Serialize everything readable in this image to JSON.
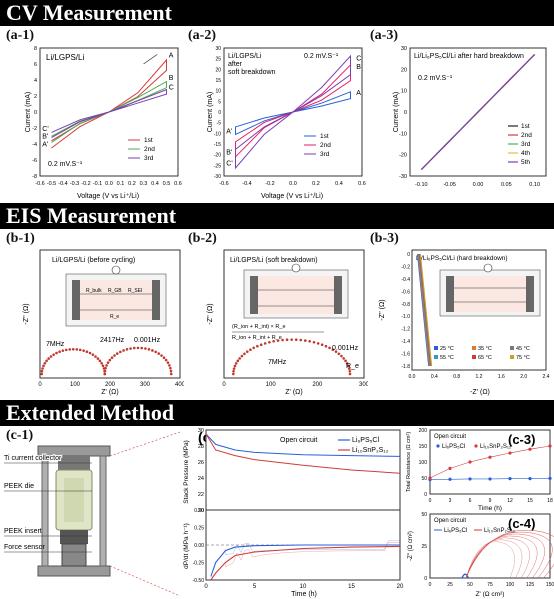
{
  "sections": {
    "cv": "CV Measurement",
    "eis": "EIS Measurement",
    "ext": "Extended Method"
  },
  "labels": {
    "a1": "(a-1)",
    "a2": "(a-2)",
    "a3": "(a-3)",
    "b1": "(b-1)",
    "b2": "(b-2)",
    "b3": "(b-3)",
    "c1": "(c-1)",
    "c2": "(c-2)",
    "c3": "(c-3)",
    "c4": "(c-4)"
  },
  "a1": {
    "title": "Li/LGPS/Li",
    "scan": "0.2 mV.S⁻¹",
    "xlabel": "Voltage (V vs Li⁺/Li)",
    "ylabel": "Current (mA)",
    "legend": [
      "1st",
      "2nd",
      "3rd"
    ],
    "points": [
      "A",
      "B",
      "C",
      "A'",
      "B'",
      "C'"
    ],
    "xticks": [
      "-0.6",
      "-0.5",
      "-0.4",
      "-0.3",
      "-0.2",
      "-0.1",
      "0.0",
      "0.1",
      "0.2",
      "0.3",
      "0.4",
      "0.5",
      "0.6"
    ],
    "yticks": [
      "-8",
      "-6",
      "-4",
      "-2",
      "0",
      "2",
      "4",
      "6",
      "8"
    ]
  },
  "a2": {
    "title": "Li/LGPS/Li\nafter\nsoft breakdown",
    "t1": "Li/LGPS/Li",
    "t2": "after",
    "t3": "soft breakdown",
    "scan": "0.2 mV.S⁻¹",
    "xlabel": "Voltage (V vs Li⁺/Li)",
    "ylabel": "Current (mA)",
    "legend": [
      "1st",
      "2nd",
      "3rd"
    ],
    "xticks": [
      "-0.6",
      "-0.4",
      "-0.2",
      "0.0",
      "0.2",
      "0.4",
      "0.6"
    ],
    "yticks": [
      "-30",
      "-25",
      "-20",
      "-15",
      "-10",
      "-5",
      "0",
      "5",
      "10",
      "15",
      "20",
      "25",
      "30"
    ]
  },
  "a3": {
    "title": "Li/Li₆PS₅Cl/Li  after hard breakdown",
    "scan": "0.2 mV.S⁻¹",
    "ylabel": "Current (mA)",
    "legend": [
      "1st",
      "2nd",
      "3rd",
      "4th",
      "5th"
    ],
    "xticks": [
      "-0.10",
      "-0.05",
      "0.00",
      "0.05",
      "0.10"
    ],
    "yticks": [
      "-30",
      "-20",
      "-10",
      "0",
      "10",
      "20",
      "30"
    ]
  },
  "b1": {
    "title": "Li/LGPS/Li (before cycling)",
    "xlabel": "Z' (Ω)",
    "ylabel": "-Z'' (Ω)",
    "xticks": [
      "0",
      "100",
      "200",
      "300",
      "400"
    ],
    "freq": [
      "7MHz",
      "2417Hz",
      "0.001Hz"
    ],
    "circuit": [
      "R_bulk",
      "R_GB",
      "R_SEI",
      "R_e"
    ]
  },
  "b2": {
    "title": "Li/LGPS/Li (soft breakdown)",
    "xlabel": "Z' (Ω)",
    "ylabel": "-Z'' (Ω)",
    "xticks": [
      "0",
      "100",
      "200",
      "300"
    ],
    "freq": [
      "7MHz",
      "0.001Hz"
    ],
    "formula_num": "(R_ion + R_int) × R_e",
    "formula_den": "R_ion + R_int + R_e",
    "re": "R_e"
  },
  "b3": {
    "title": "Li/Li₆PS₅Cl/Li (hard breakdown)",
    "xlabel": "-Z' (Ω)",
    "ylabel": "-Z'' (Ω)",
    "xticks": [
      "0.0",
      "0.2",
      "0.4",
      "0.6",
      "0.8",
      "1.0",
      "1.2",
      "1.4",
      "1.6",
      "1.8",
      "2.0",
      "2.2",
      "2.4"
    ],
    "yticks": [
      "0",
      "-0.2",
      "-0.4",
      "-0.6",
      "-0.8",
      "-1.0",
      "-1.2",
      "-1.4",
      "-1.6",
      "-1.8"
    ],
    "legend": [
      "25 °C",
      "35 °C",
      "45 °C",
      "55 °C",
      "65 °C",
      "75 °C"
    ],
    "legend_colors": [
      "#2b5fd9",
      "#e07b2a",
      "#7a7a7a",
      "#2e9ad0",
      "#d43a3a",
      "#c8a02a"
    ]
  },
  "c1": {
    "labels": [
      "Ti current collector",
      "PEEK die",
      "PEEK insert",
      "Force sensor"
    ]
  },
  "c2": {
    "legend_title": "Open circuit",
    "series": [
      "Li₆PS₅Cl",
      "Li₁₀SnP₂S₁₂"
    ],
    "ylabel_top": "Stack Pressure (MPa)",
    "ylabel_bot": "dP/dt (MPa h⁻¹)",
    "xlabel": "Time (h)",
    "yticks_top": [
      "20",
      "22",
      "24",
      "26",
      "28",
      "30"
    ],
    "yticks_bot": [
      "0.50",
      "0.25",
      "0.00",
      "-0.25",
      "-0.50"
    ],
    "xticks": [
      "0",
      "5",
      "10",
      "15",
      "20"
    ],
    "colors": [
      "#2b5fd9",
      "#d43a3a"
    ]
  },
  "c3": {
    "legend_title": "Open circuit",
    "series": [
      "Li₆PS₅Cl",
      "Li₁₀SnP₂S₁₂"
    ],
    "ylabel": "Total Resistance (Ω cm²)",
    "xlabel": "Time (h)",
    "yticks": [
      "0",
      "50",
      "100",
      "150",
      "200"
    ],
    "xticks": [
      "0",
      "3",
      "6",
      "9",
      "12",
      "15",
      "18"
    ]
  },
  "c4": {
    "legend_title": "Open circuit",
    "series": [
      "Li₆PS₅Cl",
      "Li₁₀SnP₂S₁₂"
    ],
    "ylabel": "-Z'' (Ω cm²)",
    "xlabel": "Z' (Ω cm²)",
    "yticks": [
      "0",
      "25",
      "50"
    ],
    "xticks": [
      "0",
      "25",
      "50",
      "75",
      "100",
      "125",
      "150"
    ]
  },
  "chart_data": [
    {
      "type": "line",
      "title": "Li/LGPS/Li",
      "xlabel": "Voltage (V vs Li⁺/Li)",
      "ylabel": "Current (mA)",
      "xlim": [
        -0.6,
        0.6
      ],
      "ylim": [
        -8,
        8
      ],
      "series": [
        {
          "name": "1st",
          "x": [
            -0.5,
            -0.25,
            0,
            0.25,
            0.5
          ],
          "y": [
            -4.5,
            -1.8,
            0,
            2.4,
            6.5
          ]
        },
        {
          "name": "2nd",
          "x": [
            -0.5,
            -0.25,
            0,
            0.25,
            0.5
          ],
          "y": [
            -3.8,
            -1.4,
            0,
            1.8,
            3.8
          ]
        },
        {
          "name": "3rd",
          "x": [
            -0.5,
            -0.25,
            0,
            0.25,
            0.5
          ],
          "y": [
            -3.2,
            -1.2,
            0,
            1.4,
            2.8
          ]
        }
      ]
    },
    {
      "type": "line",
      "title": "Li/LGPS/Li after soft breakdown",
      "xlabel": "Voltage (V vs Li⁺/Li)",
      "ylabel": "Current (mA)",
      "xlim": [
        -0.6,
        0.6
      ],
      "ylim": [
        -30,
        30
      ],
      "series": [
        {
          "name": "1st",
          "x": [
            -0.5,
            -0.25,
            0,
            0.25,
            0.5
          ],
          "y": [
            -10,
            -4,
            0,
            4,
            9
          ]
        },
        {
          "name": "2nd",
          "x": [
            -0.5,
            -0.25,
            0,
            0.25,
            0.5
          ],
          "y": [
            -20,
            -7,
            0,
            8,
            21
          ]
        },
        {
          "name": "3rd",
          "x": [
            -0.5,
            -0.25,
            0,
            0.25,
            0.5
          ],
          "y": [
            -25,
            -10,
            0,
            11,
            25
          ]
        }
      ]
    },
    {
      "type": "line",
      "title": "Li/Li₆PS₅Cl/Li after hard breakdown",
      "ylabel": "Current (mA)",
      "xlim": [
        -0.12,
        0.12
      ],
      "ylim": [
        -30,
        30
      ],
      "series": [
        {
          "name": "1st",
          "x": [
            -0.1,
            0.1
          ],
          "y": [
            -27,
            27
          ]
        },
        {
          "name": "2nd",
          "x": [
            -0.1,
            0.1
          ],
          "y": [
            -27,
            27
          ]
        },
        {
          "name": "3rd",
          "x": [
            -0.1,
            0.1
          ],
          "y": [
            -27,
            27
          ]
        },
        {
          "name": "4th",
          "x": [
            -0.1,
            0.1
          ],
          "y": [
            -27,
            27
          ]
        },
        {
          "name": "5th",
          "x": [
            -0.1,
            0.1
          ],
          "y": [
            -27,
            27
          ]
        }
      ]
    },
    {
      "type": "scatter",
      "title": "Li/LGPS/Li (before cycling)",
      "xlabel": "Z' (Ω)",
      "ylabel": "-Z'' (Ω)",
      "xlim": [
        0,
        400
      ],
      "series": [
        {
          "x": [
            5,
            50,
            100,
            150,
            185,
            230,
            280,
            330,
            360
          ],
          "y": [
            0,
            45,
            55,
            40,
            5,
            40,
            55,
            40,
            10
          ]
        }
      ]
    },
    {
      "type": "scatter",
      "title": "Li/LGPS/Li (soft breakdown)",
      "xlabel": "Z' (Ω)",
      "ylabel": "-Z'' (Ω)",
      "xlim": [
        0,
        300
      ],
      "series": [
        {
          "x": [
            20,
            60,
            110,
            160,
            210,
            250,
            270
          ],
          "y": [
            0,
            40,
            60,
            65,
            50,
            25,
            5
          ]
        }
      ]
    },
    {
      "type": "line",
      "title": "Li/Li₆PS₅Cl/Li (hard breakdown)",
      "xlabel": "-Z' (Ω)",
      "ylabel": "-Z'' (Ω)",
      "xlim": [
        0,
        2.4
      ],
      "ylim": [
        -1.8,
        0
      ],
      "series": [
        {
          "name": "25 °C",
          "x": [
            0.1,
            0.3
          ],
          "y": [
            0,
            -1.8
          ]
        },
        {
          "name": "35 °C",
          "x": [
            0.1,
            0.3
          ],
          "y": [
            0,
            -1.8
          ]
        },
        {
          "name": "45 °C",
          "x": [
            0.1,
            0.3
          ],
          "y": [
            0,
            -1.8
          ]
        },
        {
          "name": "55 °C",
          "x": [
            0.1,
            0.3
          ],
          "y": [
            0,
            -1.8
          ]
        },
        {
          "name": "65 °C",
          "x": [
            0.1,
            0.3
          ],
          "y": [
            0,
            -1.8
          ]
        },
        {
          "name": "75 °C",
          "x": [
            0.1,
            0.3
          ],
          "y": [
            0,
            -1.8
          ]
        }
      ]
    },
    {
      "type": "line",
      "title": "",
      "xlabel": "Time (h)",
      "ylabel": "Stack Pressure (MPa)",
      "xlim": [
        0,
        20
      ],
      "ylim": [
        20,
        30
      ],
      "series": [
        {
          "name": "Li₆PS₅Cl",
          "x": [
            0,
            1,
            3,
            5,
            10,
            15,
            20
          ],
          "y": [
            29.5,
            28.2,
            27.5,
            27.2,
            26.9,
            26.8,
            26.7
          ]
        },
        {
          "name": "Li₁₀SnP₂S₁₂",
          "x": [
            0,
            1,
            3,
            5,
            10,
            15,
            20
          ],
          "y": [
            29.5,
            27.5,
            26.8,
            26.3,
            25.6,
            25.0,
            24.6
          ]
        }
      ]
    },
    {
      "type": "line",
      "title": "",
      "xlabel": "Time (h)",
      "ylabel": "dP/dt (MPa h⁻¹)",
      "xlim": [
        0,
        20
      ],
      "ylim": [
        -0.5,
        0.5
      ],
      "series": [
        {
          "name": "Li₆PS₅Cl",
          "x": [
            0.5,
            1,
            2,
            3,
            5,
            10,
            15,
            20
          ],
          "y": [
            -0.45,
            -0.25,
            -0.08,
            -0.03,
            -0.01,
            0,
            0,
            0
          ]
        },
        {
          "name": "Li₁₀SnP₂S₁₂",
          "x": [
            0.5,
            1,
            2,
            3,
            5,
            10,
            15,
            20
          ],
          "y": [
            -0.5,
            -0.4,
            -0.25,
            -0.15,
            -0.1,
            -0.05,
            -0.03,
            -0.02
          ]
        }
      ]
    },
    {
      "type": "line",
      "title": "",
      "xlabel": "Time (h)",
      "ylabel": "Total Resistance (Ω cm²)",
      "xlim": [
        0,
        18
      ],
      "ylim": [
        0,
        200
      ],
      "series": [
        {
          "name": "Li₆PS₅Cl",
          "x": [
            0,
            3,
            6,
            9,
            12,
            15,
            18
          ],
          "y": [
            45,
            46,
            47,
            47,
            48,
            48,
            49
          ]
        },
        {
          "name": "Li₁₀SnP₂S₁₂",
          "x": [
            0,
            3,
            6,
            9,
            12,
            15,
            18
          ],
          "y": [
            50,
            80,
            100,
            115,
            128,
            140,
            150
          ]
        }
      ]
    },
    {
      "type": "line",
      "title": "",
      "xlabel": "Z' (Ω cm²)",
      "ylabel": "-Z'' (Ω cm²)",
      "xlim": [
        0,
        150
      ],
      "ylim": [
        0,
        50
      ],
      "series": [
        {
          "name": "Li₆PS₅Cl",
          "x": [
            40,
            45,
            48
          ],
          "y": [
            0,
            3,
            0
          ]
        },
        {
          "name": "Li₁₀SnP₂S₁₂",
          "x": [
            45,
            70,
            100,
            140
          ],
          "y": [
            0,
            30,
            35,
            0
          ]
        }
      ]
    }
  ]
}
